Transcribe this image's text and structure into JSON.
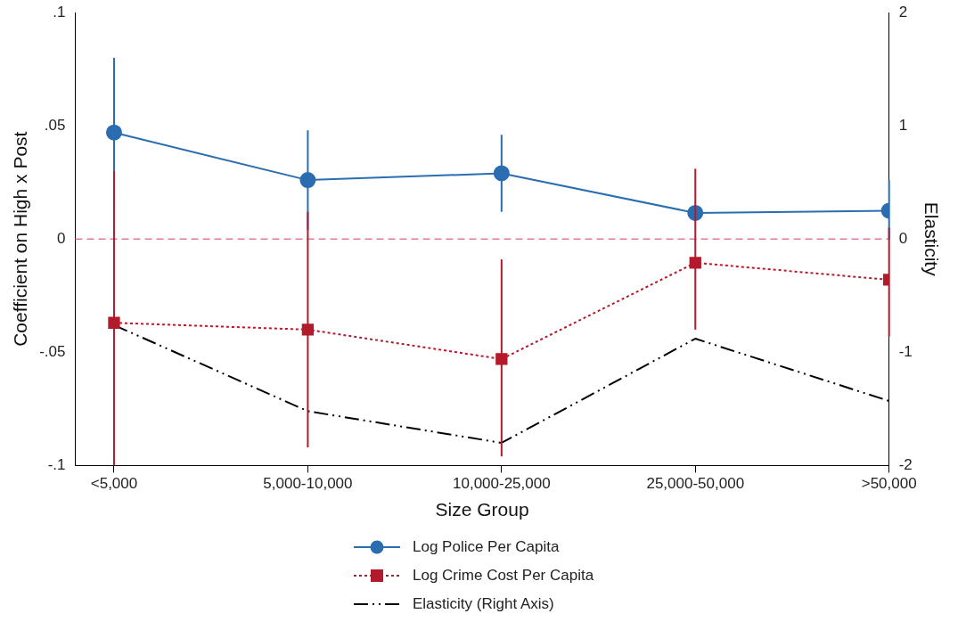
{
  "chart_data": {
    "type": "line",
    "xlabel": "Size Group",
    "ylabel": "Coefficient on High x Post",
    "y2label": "Elasticity",
    "categories": [
      "<5,000",
      "5,000-10,000",
      "10,000-25,000",
      "25,000-50,000",
      ">50,000"
    ],
    "ylim": [
      -0.1,
      0.1
    ],
    "yticks": [
      {
        "value": -0.1,
        "label": "-.1"
      },
      {
        "value": -0.05,
        "label": "-.05"
      },
      0,
      {
        "value": 0.05,
        "label": ".05"
      },
      {
        "value": 0.1,
        "label": ".1"
      }
    ],
    "y2lim": [
      -2,
      2
    ],
    "y2ticks": [
      -2,
      -1,
      0,
      1,
      2
    ],
    "grid": false,
    "legend": "bottom",
    "ref_lines": [
      {
        "axis": "y",
        "value": 0,
        "color": "#e07aa0",
        "line_style": "dashed"
      }
    ],
    "series": [
      {
        "name": "Log Police Per Capita",
        "color": "#2a6db0",
        "marker": "circle",
        "line_style": "solid",
        "values": [
          0.047,
          0.026,
          0.029,
          0.0115,
          0.0125
        ],
        "errors": [
          [
            0.015,
            0.08
          ],
          [
            0.004,
            0.048
          ],
          [
            0.012,
            0.046
          ],
          null,
          [
            0,
            0.026
          ]
        ]
      },
      {
        "name": "Log Crime Cost Per Capita",
        "color": "#b31b2c",
        "marker": "square",
        "line_style": "dotted",
        "values": [
          -0.037,
          -0.04,
          -0.053,
          -0.0105,
          -0.018
        ],
        "errors": [
          [
            -0.1,
            0.03
          ],
          [
            -0.092,
            0.012
          ],
          [
            -0.096,
            -0.009
          ],
          [
            -0.04,
            0.031
          ],
          [
            -0.043,
            0.005
          ]
        ]
      },
      {
        "name": "Elasticity (Right Axis)",
        "color": "#000000",
        "marker": "none",
        "line_style": "dashdot",
        "axis": "y2",
        "values": [
          -0.76,
          -1.52,
          -1.8,
          -0.88,
          -1.43
        ]
      }
    ]
  }
}
